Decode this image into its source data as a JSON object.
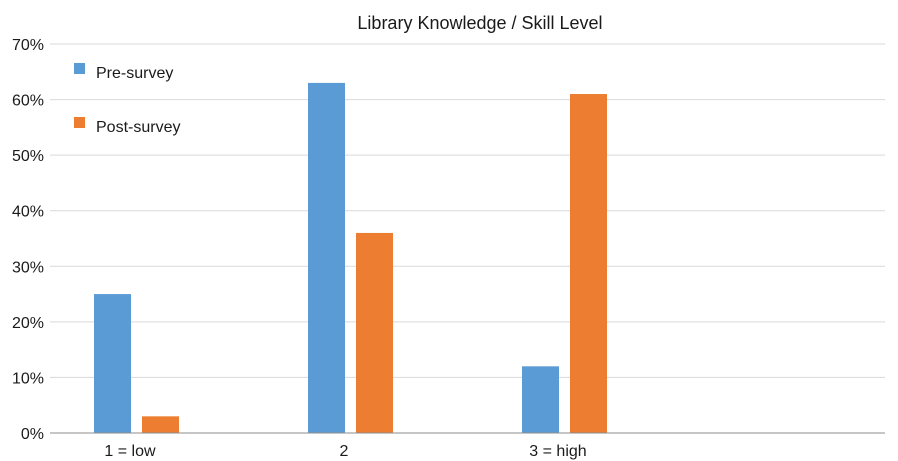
{
  "chart_data": {
    "type": "bar",
    "title": "Library Knowledge / Skill Level",
    "categories": [
      "1 = low",
      "2",
      "3 = high"
    ],
    "series": [
      {
        "name": "Pre-survey",
        "values": [
          25,
          63,
          12
        ],
        "color": "#5b9bd5"
      },
      {
        "name": "Post-survey",
        "values": [
          3,
          36,
          61
        ],
        "color": "#ed7d31"
      }
    ],
    "ylim": [
      0,
      70
    ],
    "yticks": [
      "0%",
      "10%",
      "20%",
      "30%",
      "40%",
      "50%",
      "60%",
      "70%"
    ],
    "grid": true,
    "legend_position": "top-left"
  }
}
